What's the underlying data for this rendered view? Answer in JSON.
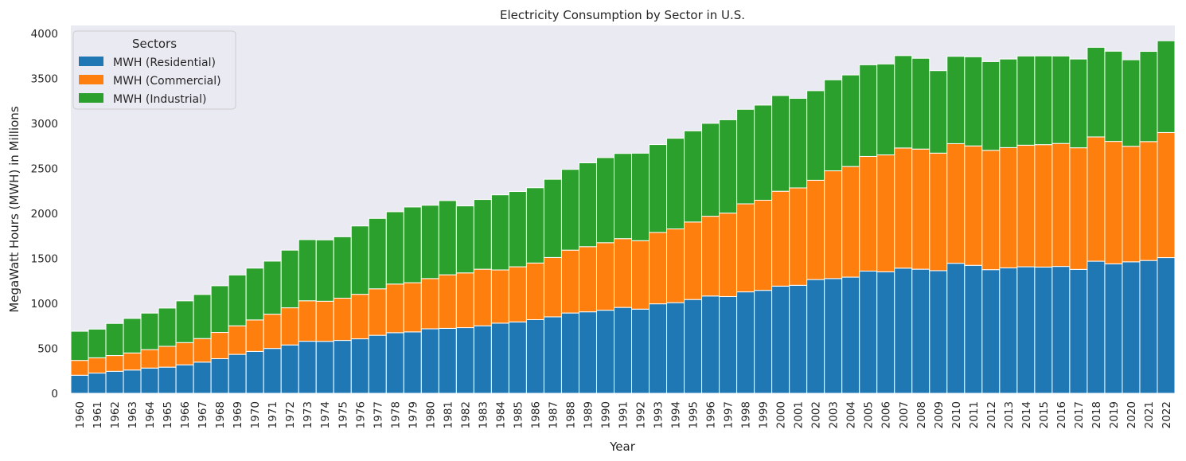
{
  "chart_data": {
    "type": "bar",
    "stacked": true,
    "title": "Electricity Consumption by Sector in U.S.",
    "xlabel": "Year",
    "ylabel": "MegaWatt Hours (MWH) in Millions",
    "ylim": [
      0,
      4090
    ],
    "yticks": [
      0,
      500,
      1000,
      1500,
      2000,
      2500,
      3000,
      3500,
      4000
    ],
    "grid": false,
    "background": "#eaeaf2",
    "legend": {
      "title": "Sectors",
      "placement": "upper-left"
    },
    "categories": [
      "1960",
      "1961",
      "1962",
      "1963",
      "1964",
      "1965",
      "1966",
      "1967",
      "1968",
      "1969",
      "1970",
      "1971",
      "1972",
      "1973",
      "1974",
      "1975",
      "1976",
      "1977",
      "1978",
      "1979",
      "1980",
      "1981",
      "1982",
      "1983",
      "1984",
      "1985",
      "1986",
      "1987",
      "1988",
      "1989",
      "1990",
      "1991",
      "1992",
      "1993",
      "1994",
      "1995",
      "1996",
      "1997",
      "1998",
      "1999",
      "2000",
      "2001",
      "2002",
      "2003",
      "2004",
      "2005",
      "2006",
      "2007",
      "2008",
      "2009",
      "2010",
      "2011",
      "2012",
      "2013",
      "2014",
      "2015",
      "2016",
      "2017",
      "2018",
      "2019",
      "2020",
      "2021",
      "2022"
    ],
    "series": [
      {
        "name": "MWH (Residential)",
        "color": "#1f77b4",
        "values": [
          201,
          225,
          245,
          259,
          281,
          291,
          317,
          347,
          385,
          433,
          466,
          499,
          538,
          579,
          578,
          588,
          606,
          645,
          674,
          683,
          717,
          722,
          730,
          751,
          780,
          794,
          819,
          850,
          893,
          906,
          924,
          955,
          936,
          995,
          1008,
          1043,
          1082,
          1076,
          1128,
          1145,
          1192,
          1201,
          1265,
          1276,
          1292,
          1359,
          1351,
          1392,
          1380,
          1364,
          1446,
          1423,
          1375,
          1395,
          1407,
          1404,
          1411,
          1378,
          1469,
          1440,
          1462,
          1477,
          1509
        ]
      },
      {
        "name": "MWH (Commercial)",
        "color": "#ff7f0e",
        "values": [
          165,
          170,
          175,
          190,
          205,
          232,
          247,
          262,
          292,
          318,
          350,
          381,
          413,
          450,
          446,
          470,
          495,
          517,
          541,
          547,
          559,
          596,
          609,
          629,
          592,
          613,
          630,
          660,
          699,
          725,
          751,
          765,
          761,
          794,
          820,
          862,
          887,
          928,
          979,
          1002,
          1055,
          1083,
          1104,
          1198,
          1230,
          1275,
          1300,
          1336,
          1336,
          1307,
          1330,
          1328,
          1327,
          1337,
          1352,
          1361,
          1367,
          1352,
          1382,
          1361,
          1285,
          1322,
          1391
        ]
      },
      {
        "name": "MWH (Industrial)",
        "color": "#2ca02c",
        "values": [
          324,
          319,
          357,
          384,
          406,
          425,
          464,
          490,
          519,
          565,
          576,
          590,
          641,
          680,
          682,
          683,
          760,
          783,
          804,
          842,
          815,
          825,
          745,
          775,
          835,
          837,
          837,
          870,
          898,
          932,
          946,
          947,
          973,
          977,
          1008,
          1013,
          1033,
          1038,
          1051,
          1058,
          1064,
          996,
          996,
          1012,
          1018,
          1019,
          1011,
          1027,
          1009,
          917,
          971,
          991,
          986,
          985,
          992,
          987,
          973,
          987,
          996,
          1003,
          962,
          1003,
          1020
        ]
      }
    ]
  }
}
